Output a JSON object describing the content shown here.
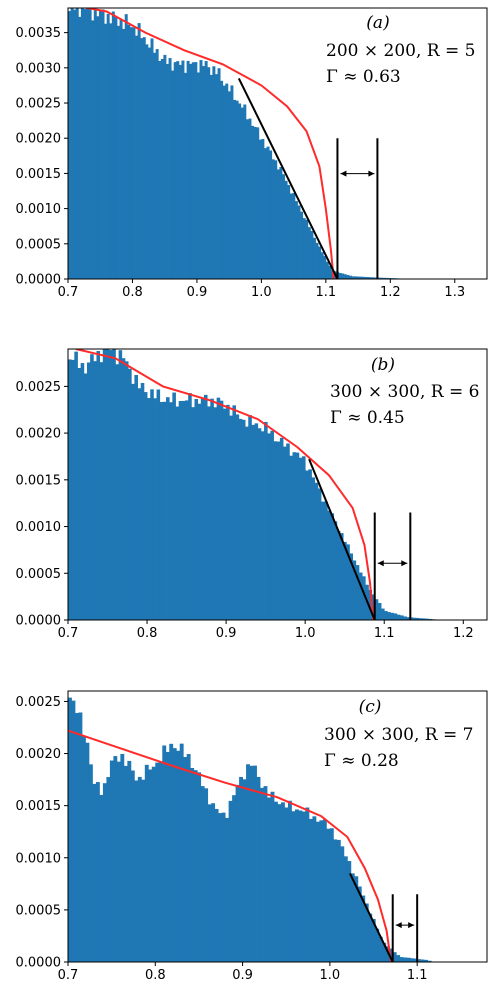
{
  "chart_data": [
    {
      "type": "histogram",
      "panel_label": "(a)",
      "annotation_lines": [
        "200 × 200, R = 5",
        "Γ ≈ 0.63"
      ],
      "xlim": [
        0.7,
        1.35
      ],
      "ylim": [
        0,
        0.00385
      ],
      "x_ticks": [
        "0.7",
        "0.8",
        "0.9",
        "1.0",
        "1.1",
        "1.2",
        "1.3"
      ],
      "y_ticks": [
        "0.0000",
        "0.0005",
        "0.0010",
        "0.0015",
        "0.0020",
        "0.0025",
        "0.0030",
        "0.0035"
      ],
      "histogram_color": "#1f77b4",
      "fit_color": "#ff2a2a",
      "hist_profile": [
        [
          0.7,
          0.00385
        ],
        [
          0.72,
          0.00385
        ],
        [
          0.74,
          0.0038
        ],
        [
          0.77,
          0.0037
        ],
        [
          0.8,
          0.0036
        ],
        [
          0.83,
          0.0033
        ],
        [
          0.85,
          0.0031
        ],
        [
          0.87,
          0.00305
        ],
        [
          0.89,
          0.00305
        ],
        [
          0.91,
          0.00305
        ],
        [
          0.93,
          0.00295
        ],
        [
          0.95,
          0.0027
        ],
        [
          0.97,
          0.00245
        ],
        [
          1.0,
          0.002
        ],
        [
          1.03,
          0.00155
        ],
        [
          1.06,
          0.001
        ],
        [
          1.09,
          0.00045
        ],
        [
          1.11,
          0.00012
        ],
        [
          1.14,
          4e-05
        ],
        [
          1.18,
          2e-05
        ],
        [
          1.21,
          1e-05
        ],
        [
          1.22,
          0.0
        ]
      ],
      "fit_curve": [
        [
          0.7,
          0.0039
        ],
        [
          0.76,
          0.0038
        ],
        [
          0.82,
          0.0035
        ],
        [
          0.88,
          0.00325
        ],
        [
          0.94,
          0.00305
        ],
        [
          1.0,
          0.00275
        ],
        [
          1.04,
          0.00245
        ],
        [
          1.07,
          0.0021
        ],
        [
          1.09,
          0.0016
        ],
        [
          1.1,
          0.001
        ],
        [
          1.108,
          0.0004
        ],
        [
          1.112,
          0.0
        ]
      ],
      "tangent_line": [
        [
          0.965,
          0.00285
        ],
        [
          1.118,
          0.0
        ]
      ],
      "marker_x": [
        1.118,
        1.18
      ],
      "marker_top": 0.002
    },
    {
      "type": "histogram",
      "panel_label": "(b)",
      "annotation_lines": [
        "300 × 300, R = 6",
        "Γ ≈ 0.45"
      ],
      "xlim": [
        0.7,
        1.23
      ],
      "ylim": [
        0,
        0.0029
      ],
      "x_ticks": [
        "0.7",
        "0.8",
        "0.9",
        "1.0",
        "1.1",
        "1.2"
      ],
      "y_ticks": [
        "0.0000",
        "0.0005",
        "0.0010",
        "0.0015",
        "0.0020",
        "0.0025"
      ],
      "histogram_color": "#1f77b4",
      "fit_color": "#ff2a2a",
      "hist_profile": [
        [
          0.7,
          0.00285
        ],
        [
          0.72,
          0.0027
        ],
        [
          0.74,
          0.00285
        ],
        [
          0.75,
          0.00292
        ],
        [
          0.77,
          0.0028
        ],
        [
          0.79,
          0.0025
        ],
        [
          0.81,
          0.0024
        ],
        [
          0.83,
          0.00235
        ],
        [
          0.86,
          0.00235
        ],
        [
          0.88,
          0.00235
        ],
        [
          0.9,
          0.0023
        ],
        [
          0.92,
          0.00215
        ],
        [
          0.95,
          0.00205
        ],
        [
          0.97,
          0.0019
        ],
        [
          1.0,
          0.0017
        ],
        [
          1.02,
          0.00135
        ],
        [
          1.05,
          0.00085
        ],
        [
          1.08,
          0.00035
        ],
        [
          1.1,
          0.0001
        ],
        [
          1.13,
          3e-05
        ],
        [
          1.16,
          1e-05
        ],
        [
          1.17,
          0.0
        ]
      ],
      "fit_curve": [
        [
          0.71,
          0.0029
        ],
        [
          0.76,
          0.0028
        ],
        [
          0.82,
          0.0025
        ],
        [
          0.88,
          0.00235
        ],
        [
          0.94,
          0.00215
        ],
        [
          0.99,
          0.00185
        ],
        [
          1.03,
          0.00155
        ],
        [
          1.06,
          0.0012
        ],
        [
          1.075,
          0.0008
        ],
        [
          1.082,
          0.0004
        ],
        [
          1.086,
          0.0
        ]
      ],
      "tangent_line": [
        [
          1.005,
          0.00172
        ],
        [
          1.088,
          0.0
        ]
      ],
      "marker_x": [
        1.088,
        1.133
      ],
      "marker_top": 0.00115
    },
    {
      "type": "histogram",
      "panel_label": "(c)",
      "annotation_lines": [
        "300 × 300, R = 7",
        "Γ ≈ 0.28"
      ],
      "xlim": [
        0.7,
        1.18
      ],
      "ylim": [
        0,
        0.0026
      ],
      "x_ticks": [
        "0.7",
        "0.8",
        "0.9",
        "1.0",
        "1.1"
      ],
      "y_ticks": [
        "0.0000",
        "0.0005",
        "0.0010",
        "0.0015",
        "0.0020",
        "0.0025"
      ],
      "histogram_color": "#1f77b4",
      "fit_color": "#ff2a2a",
      "hist_profile": [
        [
          0.7,
          0.0026
        ],
        [
          0.72,
          0.0022
        ],
        [
          0.73,
          0.0017
        ],
        [
          0.74,
          0.00165
        ],
        [
          0.75,
          0.0019
        ],
        [
          0.76,
          0.002
        ],
        [
          0.78,
          0.00175
        ],
        [
          0.8,
          0.0019
        ],
        [
          0.82,
          0.0021
        ],
        [
          0.84,
          0.00195
        ],
        [
          0.86,
          0.0016
        ],
        [
          0.87,
          0.00145
        ],
        [
          0.88,
          0.0014
        ],
        [
          0.9,
          0.0018
        ],
        [
          0.91,
          0.0019
        ],
        [
          0.93,
          0.0016
        ],
        [
          0.95,
          0.0015
        ],
        [
          0.97,
          0.00145
        ],
        [
          1.0,
          0.0013
        ],
        [
          1.02,
          0.001
        ],
        [
          1.04,
          0.0006
        ],
        [
          1.06,
          0.0002
        ],
        [
          1.08,
          5e-05
        ],
        [
          1.11,
          2e-05
        ],
        [
          1.12,
          0.0
        ]
      ],
      "fit_curve": [
        [
          0.7,
          0.00222
        ],
        [
          0.76,
          0.00205
        ],
        [
          0.82,
          0.00188
        ],
        [
          0.88,
          0.00172
        ],
        [
          0.94,
          0.00158
        ],
        [
          0.99,
          0.0014
        ],
        [
          1.02,
          0.0012
        ],
        [
          1.04,
          0.0009
        ],
        [
          1.055,
          0.0006
        ],
        [
          1.065,
          0.0003
        ],
        [
          1.07,
          0.0
        ]
      ],
      "tangent_line": [
        [
          1.023,
          0.00085
        ],
        [
          1.072,
          0.0
        ]
      ],
      "marker_x": [
        1.072,
        1.1
      ],
      "marker_top": 0.00065
    }
  ]
}
